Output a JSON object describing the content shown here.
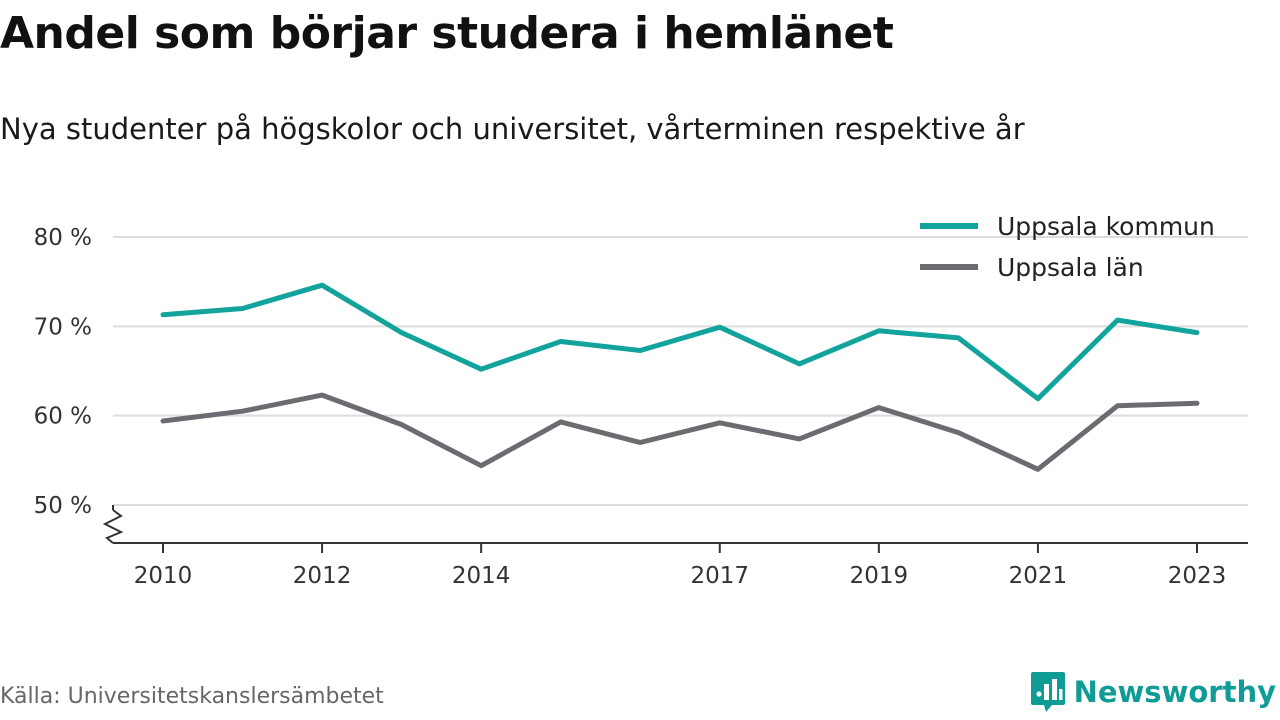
{
  "title": "Andel som börjar studera i hemlänet",
  "subtitle": "Nya studenter på högskolor och universitet, vårterminen respektive år",
  "source": "Källa: Universitetskanslersämbetet",
  "brand": "Newsworthy",
  "colors": {
    "kommun": "#12a39c",
    "lan": "#6d6b72",
    "grid": "#dddddd",
    "axis": "#333333",
    "brand": "#0f9c96"
  },
  "chart_data": {
    "type": "line",
    "title": "Andel som börjar studera i hemlänet",
    "subtitle": "Nya studenter på högskolor och universitet, vårterminen respektive år",
    "x": [
      2010,
      2011,
      2012,
      2013,
      2014,
      2015,
      2016,
      2017,
      2018,
      2019,
      2020,
      2021,
      2022,
      2023
    ],
    "x_tick_values": [
      2010,
      2012,
      2014,
      2017,
      2019,
      2021,
      2023
    ],
    "x_tick_labels": [
      "2010",
      "2012",
      "2014",
      "2017",
      "2019",
      "2021",
      "2023"
    ],
    "y_tick_values": [
      50,
      60,
      70,
      80
    ],
    "y_tick_labels": [
      "50 %",
      "60 %",
      "70 %",
      "80 %"
    ],
    "ylim": [
      50,
      80
    ],
    "y_axis_break": true,
    "grid": true,
    "legend_position": "top-right",
    "series": [
      {
        "name": "Uppsala kommun",
        "color": "#12a39c",
        "values": [
          71.3,
          72.0,
          74.6,
          69.3,
          65.2,
          68.3,
          67.3,
          69.9,
          65.8,
          69.5,
          68.7,
          61.9,
          70.7,
          69.3
        ]
      },
      {
        "name": "Uppsala län",
        "color": "#6d6b72",
        "values": [
          59.4,
          60.5,
          62.3,
          59.0,
          54.4,
          59.3,
          57.0,
          59.2,
          57.4,
          60.9,
          58.1,
          54.0,
          61.1,
          61.4
        ]
      }
    ]
  }
}
